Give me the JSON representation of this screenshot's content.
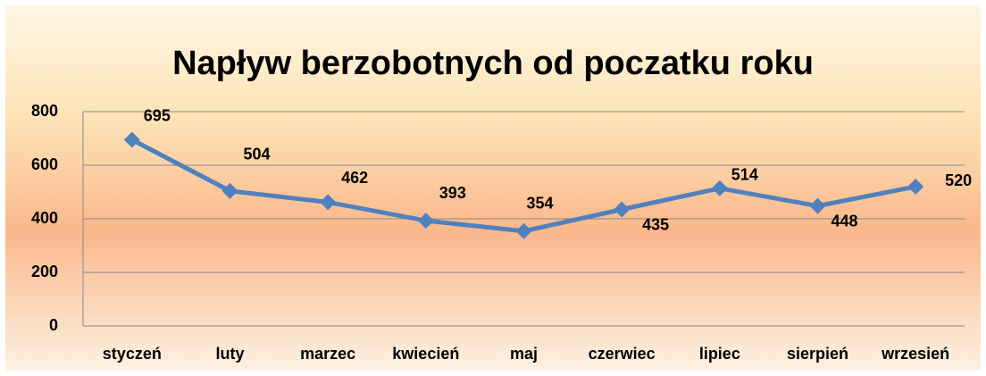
{
  "chart_data": {
    "type": "line",
    "title": "Napływ berzobotnych od poczatku roku",
    "categories": [
      "styczeń",
      "luty",
      "marzec",
      "kwiecień",
      "maj",
      "czerwiec",
      "lipiec",
      "sierpień",
      "wrzesień"
    ],
    "values": [
      695,
      504,
      462,
      393,
      354,
      435,
      514,
      448,
      520
    ],
    "color": "#4f81bd",
    "ylim": [
      0,
      800
    ],
    "yticks": [
      0,
      200,
      400,
      600,
      800
    ],
    "grid": true
  }
}
